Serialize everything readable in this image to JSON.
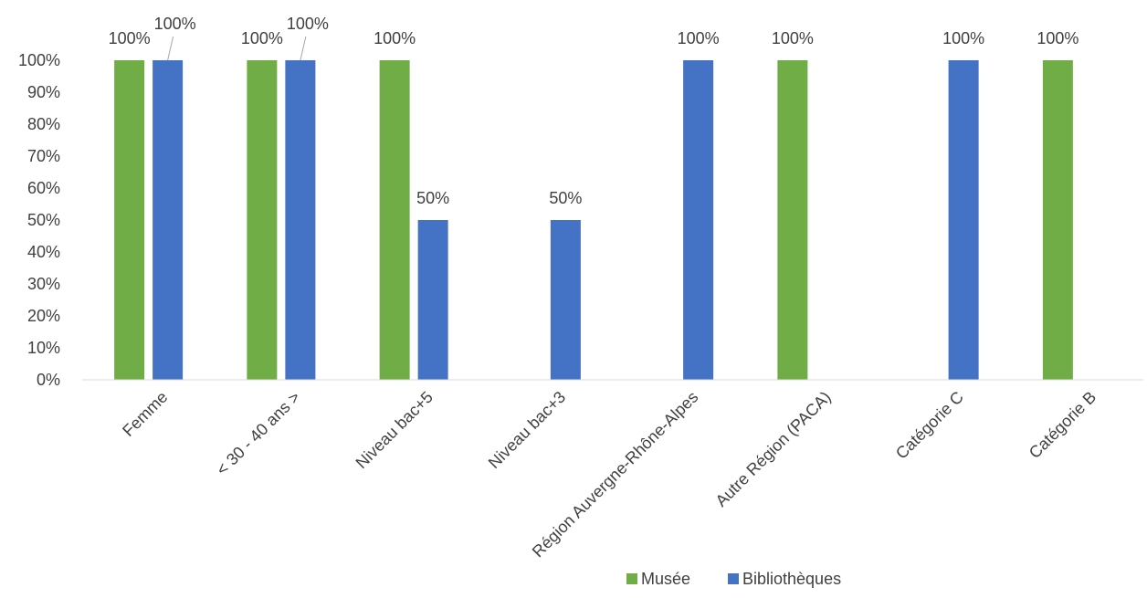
{
  "chart_data": {
    "type": "bar",
    "title": "",
    "xlabel": "",
    "ylabel": "",
    "ylim": [
      0,
      100
    ],
    "y_ticks": [
      "0%",
      "10%",
      "20%",
      "30%",
      "40%",
      "50%",
      "60%",
      "70%",
      "80%",
      "90%",
      "100%"
    ],
    "categories": [
      "Femme",
      "< 30 - 40 ans >",
      "Niveau bac+5",
      "Niveau bac+3",
      "Région Auvergne-Rhône-Alpes",
      "Autre Région (PACA)",
      "Catégorie C",
      "Catégorie B"
    ],
    "series": [
      {
        "name": "Musée",
        "color": "#70AD47",
        "values": [
          100,
          100,
          100,
          null,
          null,
          100,
          null,
          100
        ],
        "labels": [
          "100%",
          "100%",
          "100%",
          "",
          "",
          "100%",
          "",
          "100%"
        ]
      },
      {
        "name": "Bibliothèques",
        "color": "#4472C4",
        "values": [
          100,
          100,
          50,
          50,
          100,
          null,
          100,
          null
        ],
        "labels": [
          "100%",
          "100%",
          "50%",
          "50%",
          "100%",
          "",
          "100%",
          ""
        ]
      }
    ],
    "grid": false,
    "legend": "bottom"
  }
}
